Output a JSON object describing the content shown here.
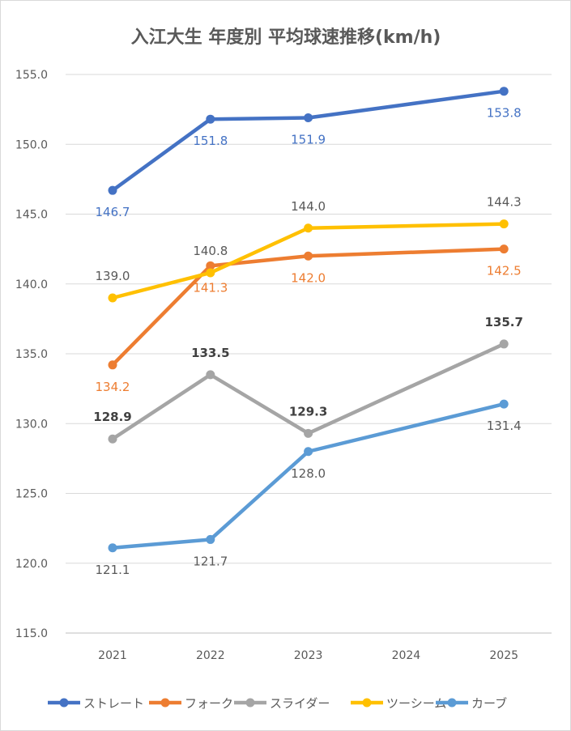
{
  "chart_data": {
    "type": "line",
    "title": "入江大生 年度別 平均球速推移(km/h)",
    "categories": [
      "2021",
      "2022",
      "2023",
      "2024",
      "2025"
    ],
    "ylim": [
      115,
      155
    ],
    "yticks": [
      "115.0",
      "120.0",
      "125.0",
      "130.0",
      "135.0",
      "140.0",
      "145.0",
      "150.0",
      "155.0"
    ],
    "ytick_values": [
      115,
      120,
      125,
      130,
      135,
      140,
      145,
      150,
      155
    ],
    "grid": true,
    "legend_position": "bottom",
    "series": [
      {
        "name": "ストレート",
        "color": "#4472C4",
        "label_color": "#4472C4",
        "values": [
          146.7,
          151.8,
          151.9,
          null,
          153.8
        ],
        "labels": [
          "146.7",
          "151.8",
          "151.9",
          "",
          "153.8"
        ]
      },
      {
        "name": "フォーク",
        "color": "#ED7D31",
        "label_color": "#ED7D31",
        "values": [
          134.2,
          141.3,
          142.0,
          null,
          142.5
        ],
        "labels": [
          "134.2",
          "141.3",
          "142.0",
          "",
          "142.5"
        ]
      },
      {
        "name": "スライダー",
        "color": "#A5A5A5",
        "label_color": "#404040",
        "values": [
          128.9,
          133.5,
          129.3,
          null,
          135.7
        ],
        "labels": [
          "128.9",
          "133.5",
          "129.3",
          "",
          "135.7"
        ]
      },
      {
        "name": "ツーシーム",
        "color": "#FFC000",
        "label_color": "#595959",
        "values": [
          139.0,
          140.8,
          144.0,
          null,
          144.3
        ],
        "labels": [
          "139.0",
          "140.8",
          "144.0",
          "",
          "144.3"
        ]
      },
      {
        "name": "カーブ",
        "color": "#5B9BD5",
        "label_color": "#595959",
        "values": [
          121.1,
          121.7,
          128.0,
          null,
          131.4
        ],
        "labels": [
          "121.1",
          "121.7",
          "128.0",
          "",
          "131.4"
        ]
      }
    ]
  }
}
